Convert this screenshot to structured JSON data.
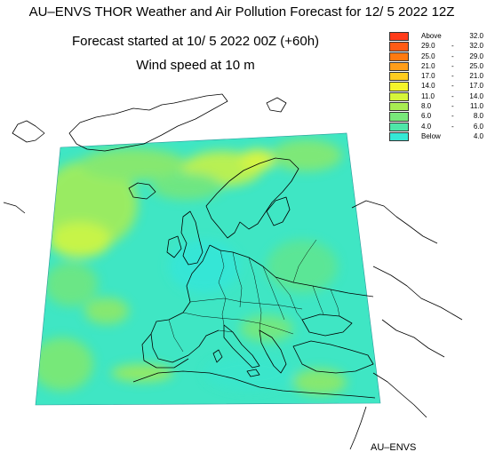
{
  "title": "AU–ENVS THOR Weather and Air Pollution Forecast for 12/ 5 2022  12Z",
  "subtitle": "Forecast started at 10/ 5 2022  00Z (+60h)",
  "variable": "Wind speed at 10 m",
  "credit": "AU–ENVS",
  "legend": [
    {
      "low": "Above",
      "high": "32.0",
      "sep": "",
      "color": "#ff3b1a"
    },
    {
      "low": "29.0",
      "high": "32.0",
      "sep": "-",
      "color": "#ff5b14"
    },
    {
      "low": "25.0",
      "high": "29.0",
      "sep": "-",
      "color": "#ff7a10"
    },
    {
      "low": "21.0",
      "high": "25.0",
      "sep": "-",
      "color": "#ff9e1a"
    },
    {
      "low": "17.0",
      "high": "21.0",
      "sep": "-",
      "color": "#ffcc1f"
    },
    {
      "low": "14.0",
      "high": "17.0",
      "sep": "-",
      "color": "#f4f42a"
    },
    {
      "low": "11.0",
      "high": "14.0",
      "sep": "-",
      "color": "#d6f53a"
    },
    {
      "low": "8.0",
      "high": "11.0",
      "sep": "-",
      "color": "#a8ec52"
    },
    {
      "low": "6.0",
      "high": "8.0",
      "sep": "-",
      "color": "#78e87a"
    },
    {
      "low": "4.0",
      "high": "6.0",
      "sep": "-",
      "color": "#4ee6a8"
    },
    {
      "low": "Below",
      "high": "4.0",
      "sep": "",
      "color": "#35e8d6"
    }
  ],
  "colors": {
    "field_base": "#3fe6c4",
    "coast": "#000000"
  }
}
